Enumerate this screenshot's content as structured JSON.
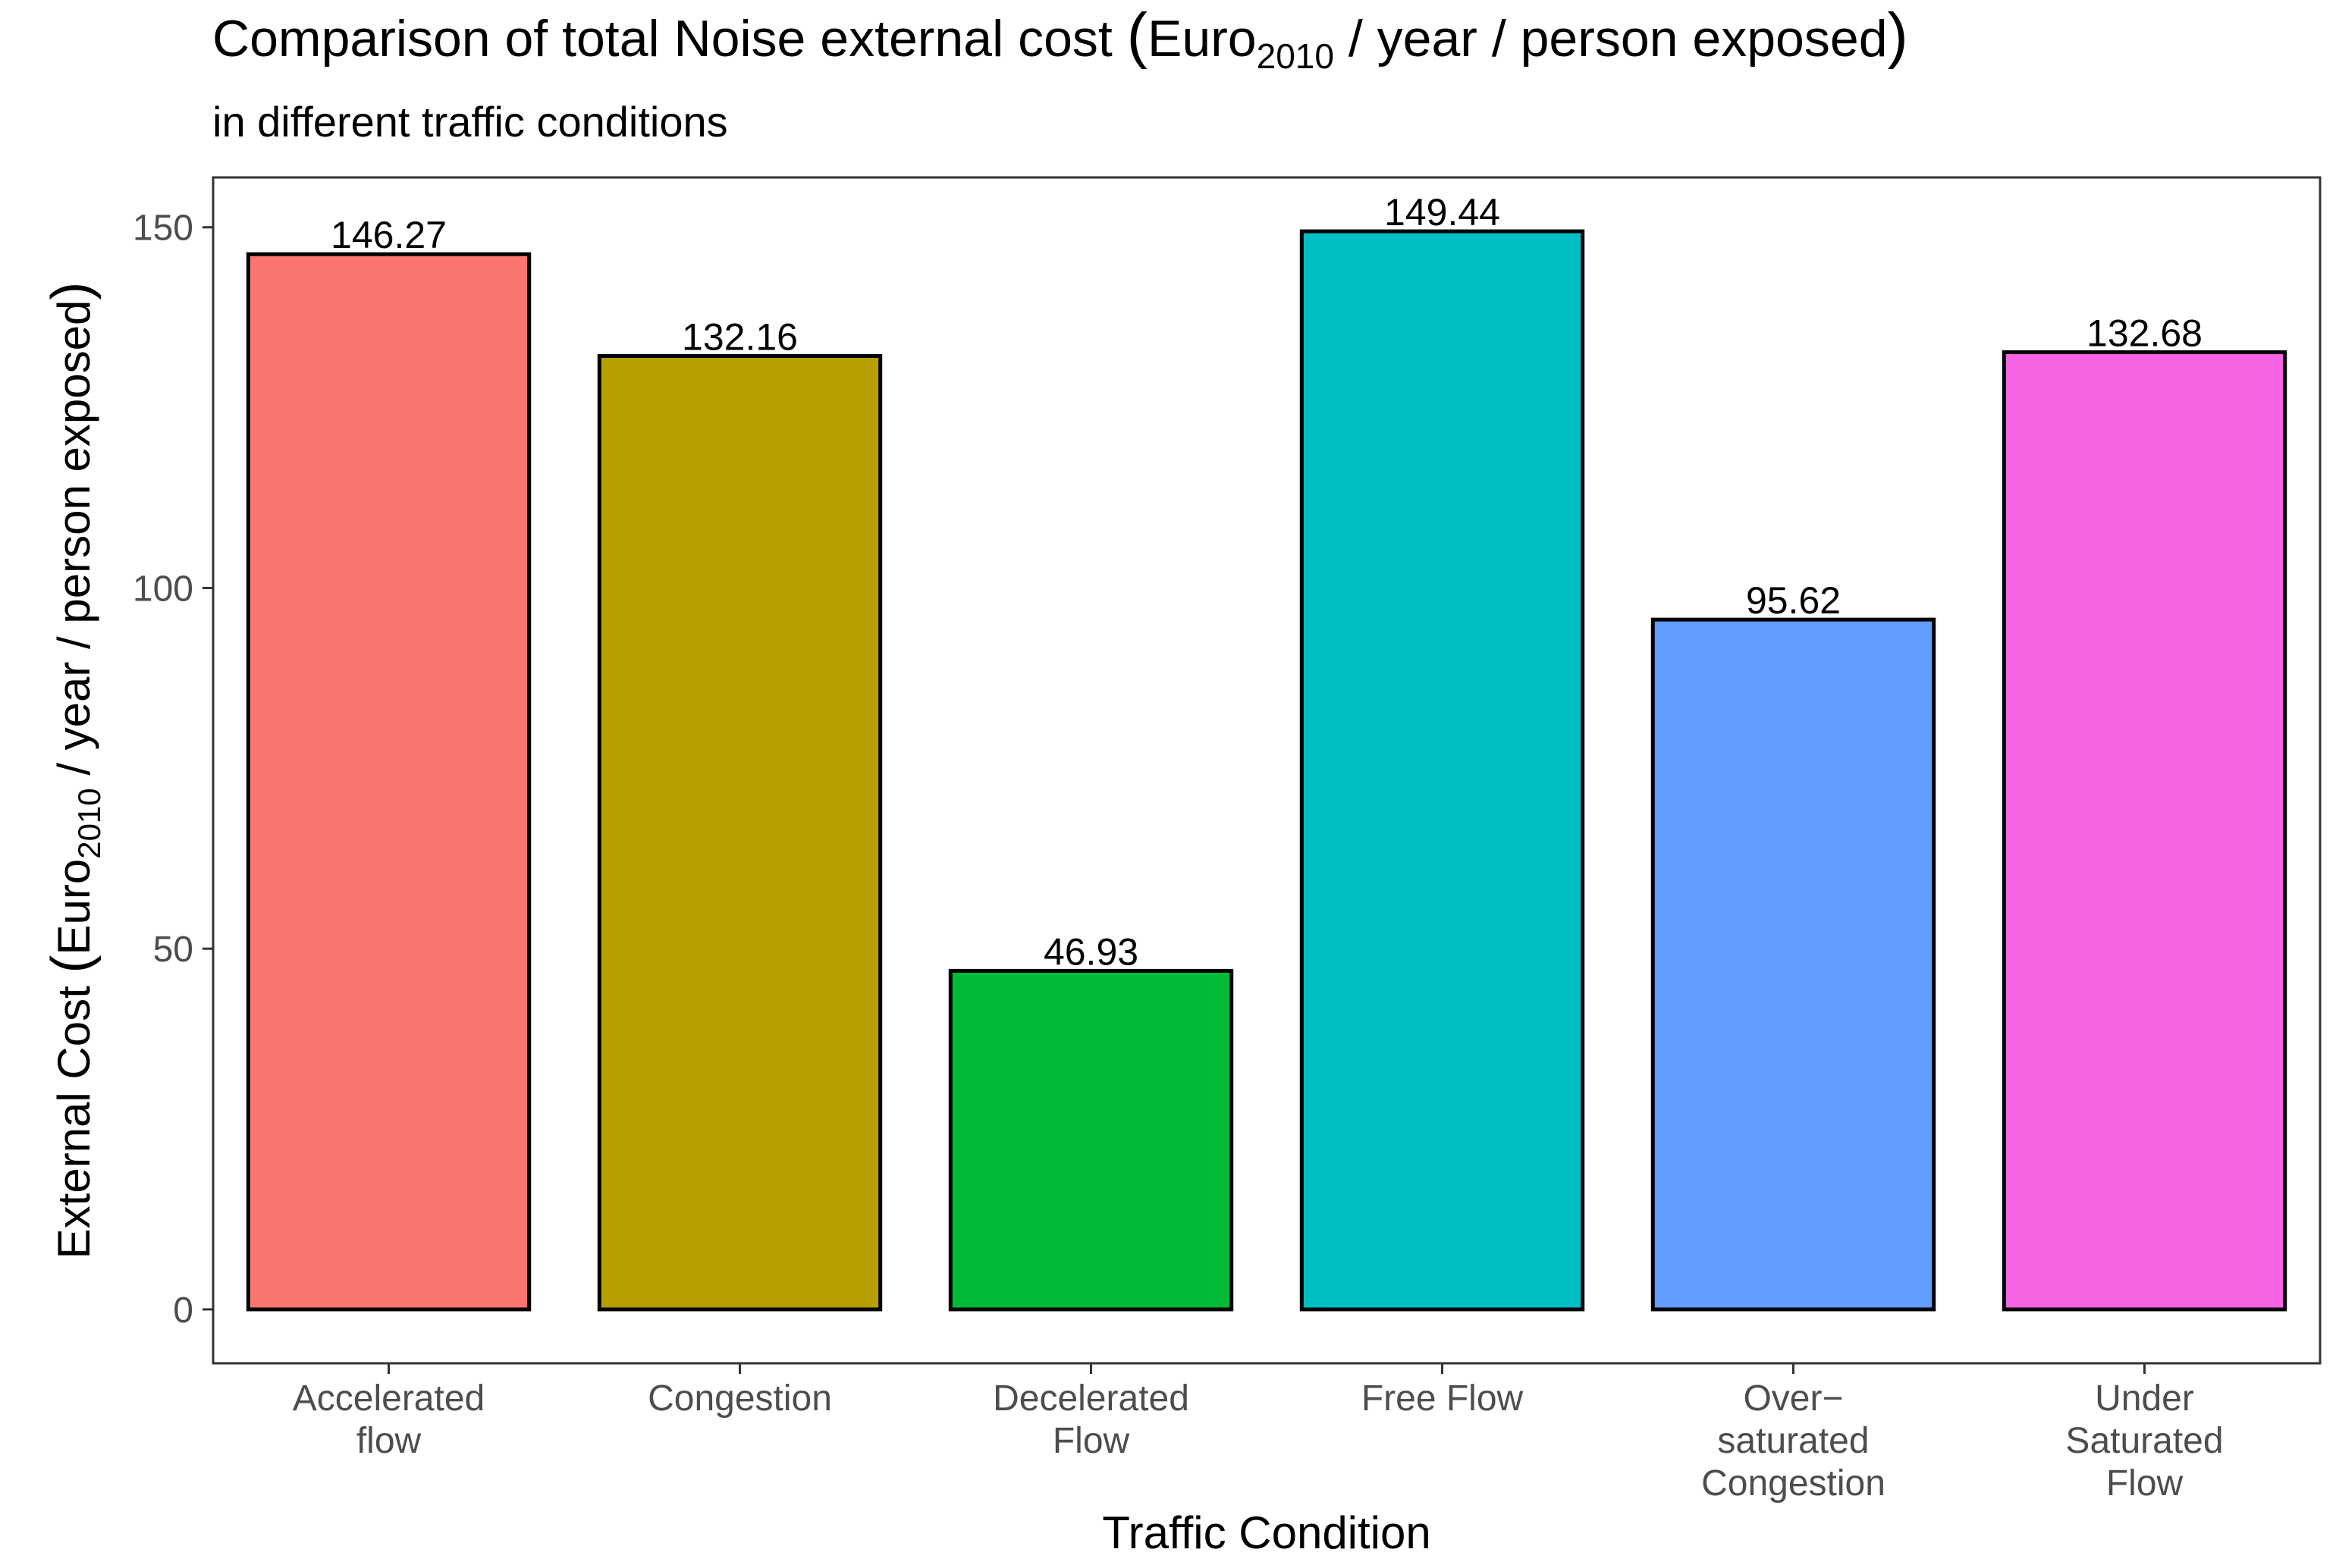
{
  "chart_data": {
    "type": "bar",
    "title": {
      "main": "Comparison of total Noise external cost ",
      "paren_open": "(",
      "unit": "Euro",
      "unit_sub": "2010",
      "unit_rest": " / year / person exposed",
      "paren_close": ")"
    },
    "subtitle": "in different traffic conditions",
    "xlabel": "Traffic Condition",
    "ylabel": {
      "prefix": "External Cost ",
      "paren_open": "(",
      "unit": "Euro",
      "unit_sub": "2010",
      "unit_rest": " / year / person exposed",
      "paren_close": ")"
    },
    "categories": [
      [
        "Accelerated",
        "flow"
      ],
      [
        "Congestion"
      ],
      [
        "Decelerated",
        "Flow"
      ],
      [
        "Free Flow"
      ],
      [
        "Over−",
        "saturated",
        "Congestion"
      ],
      [
        "Under",
        "Saturated",
        "Flow"
      ]
    ],
    "values": [
      146.27,
      132.16,
      46.93,
      149.44,
      95.62,
      132.68
    ],
    "value_labels": [
      "146.27",
      "132.16",
      "46.93",
      "149.44",
      "95.62",
      "132.68"
    ],
    "colors": [
      "#F8766D",
      "#B79F00",
      "#00BA38",
      "#00BFC4",
      "#619CFF",
      "#F564E3"
    ],
    "ylim": [
      -7.47,
      156.91
    ],
    "yticks": [
      0,
      50,
      100,
      150
    ],
    "ytick_labels": [
      "0",
      "50",
      "100",
      "150"
    ],
    "grid": false,
    "legend": "none"
  }
}
